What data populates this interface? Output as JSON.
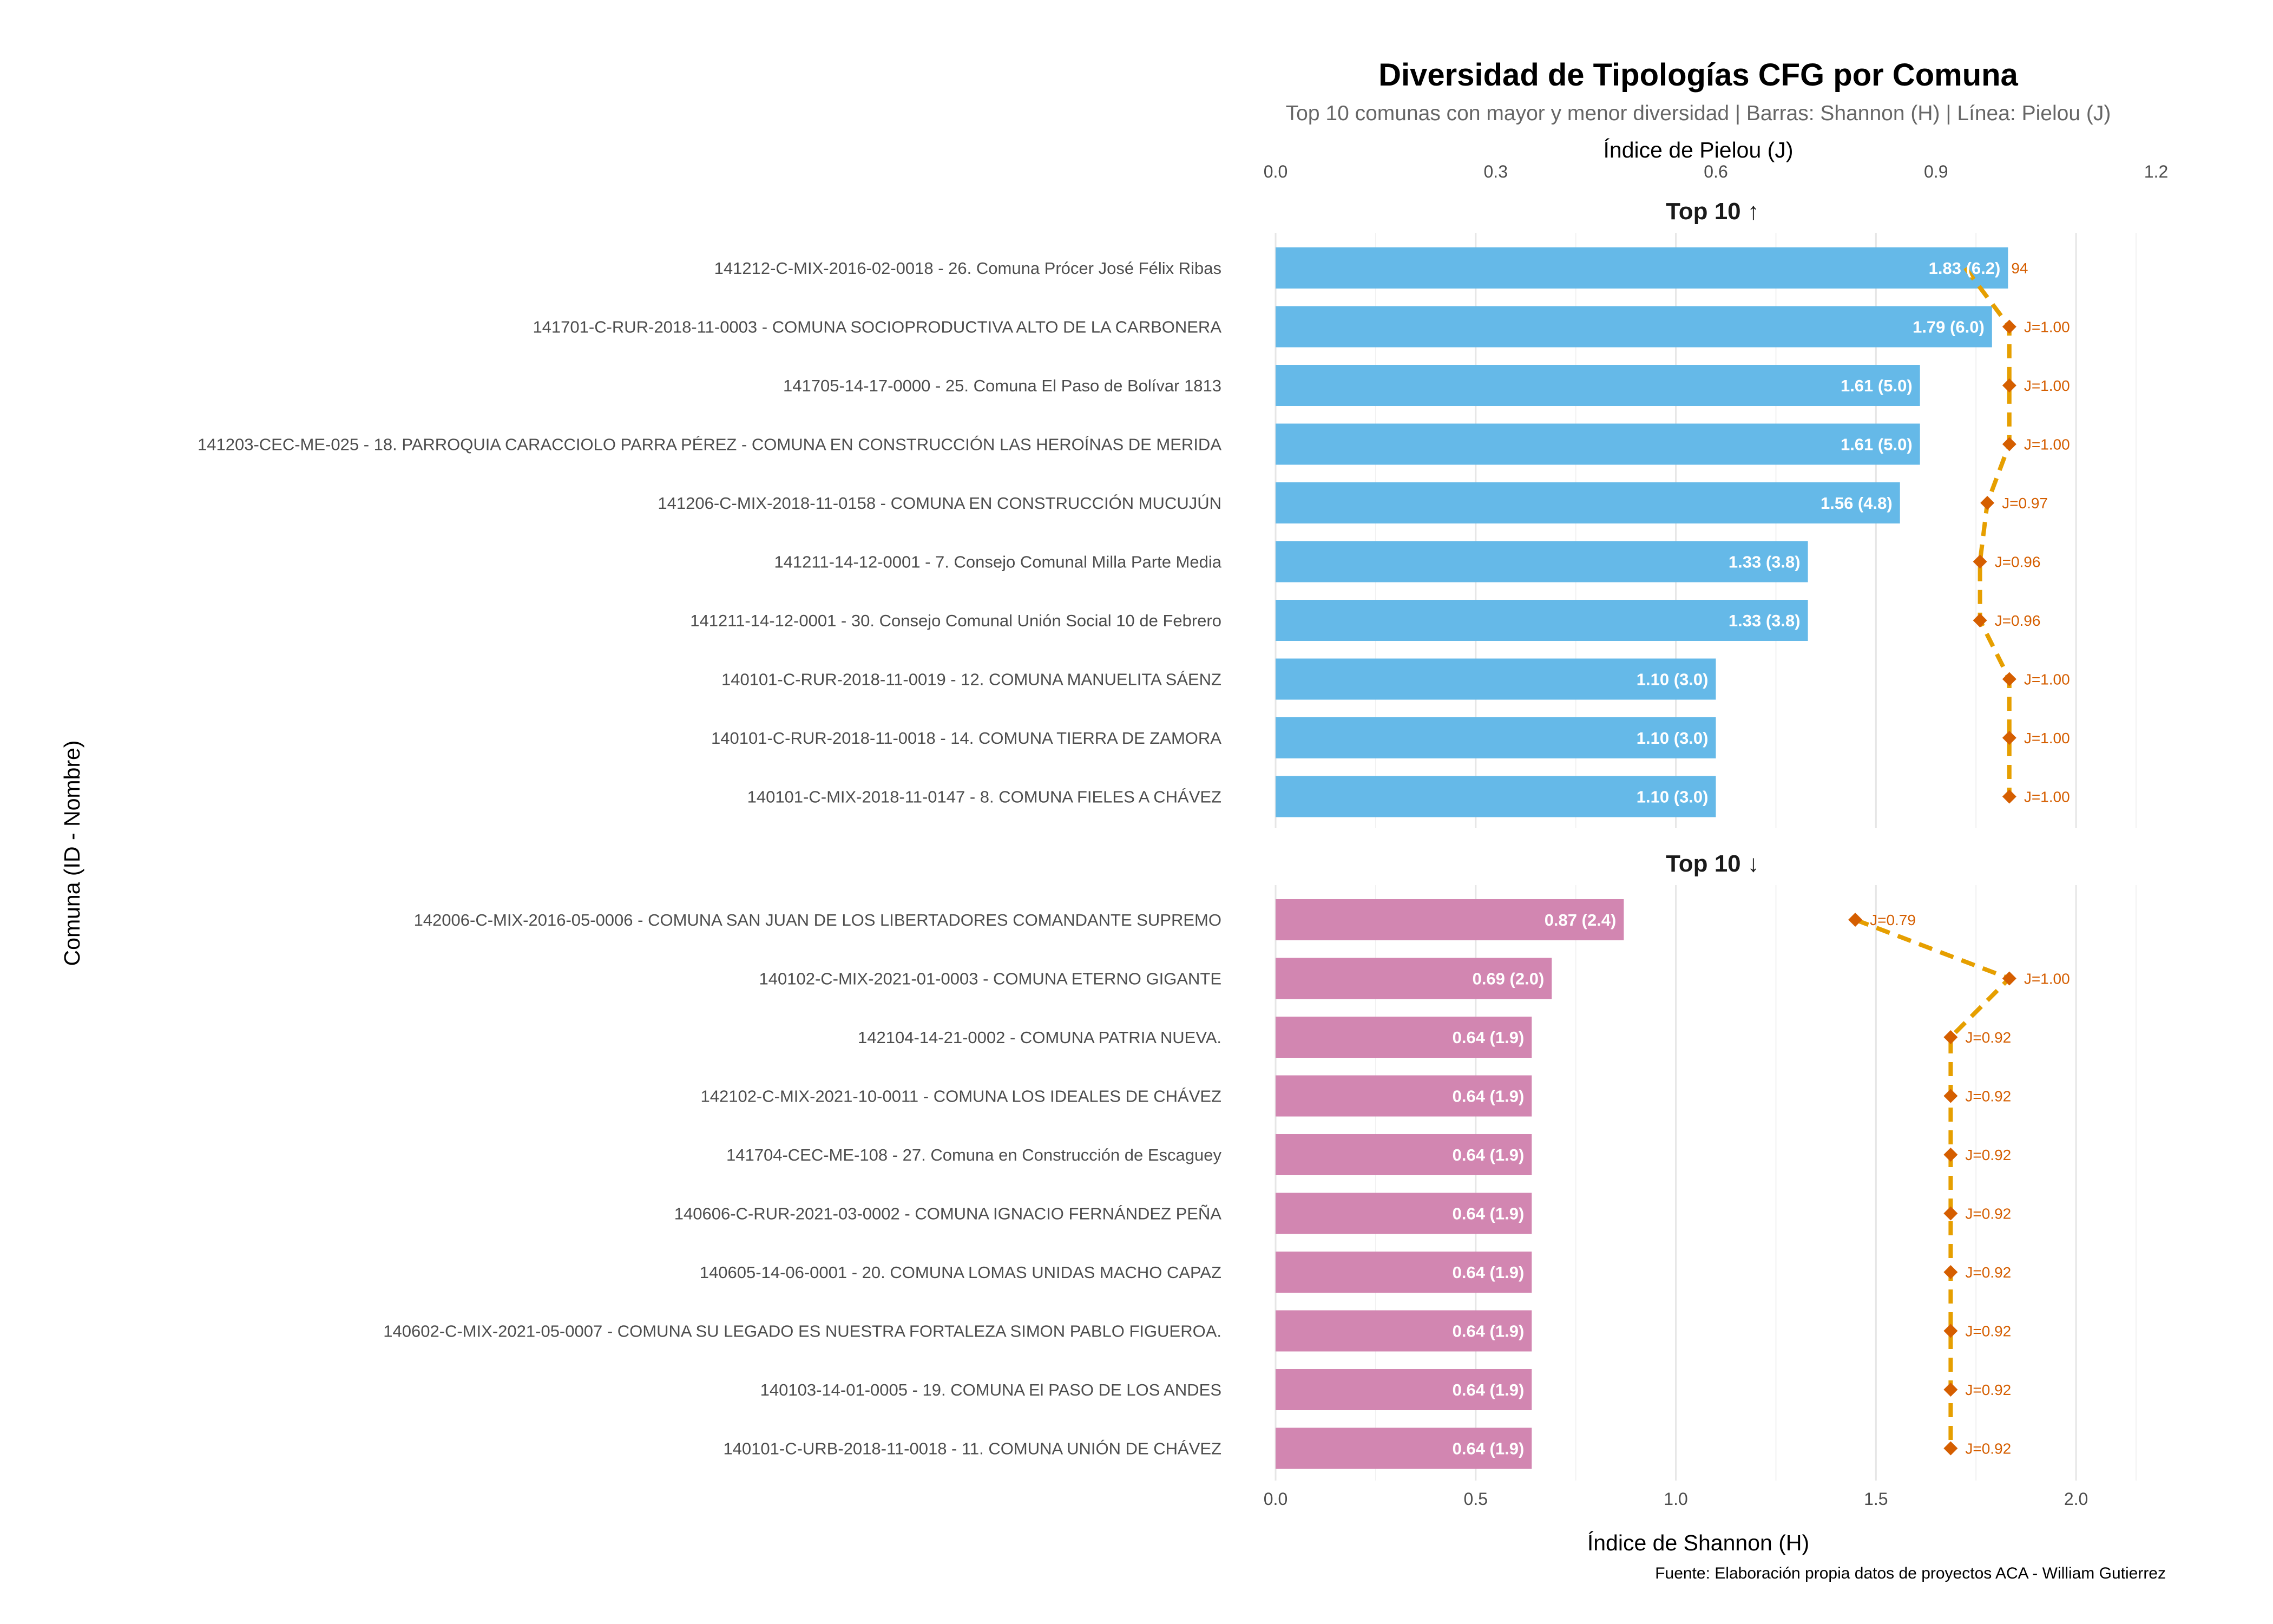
{
  "chart_data": {
    "type": "bar",
    "title": "Diversidad de Tipologías CFG por Comuna",
    "subtitle": "Top 10 comunas con mayor y menor diversidad | Barras: Shannon (H) | Línea: Pielou (J)",
    "xlabel": "Índice de Shannon (H)",
    "x2label": "Índice de Pielou (J)",
    "ylabel": "Comuna (ID - Nombre)",
    "caption": "Fuente: Elaboración propia datos de proyectos ACA - William Gutierrez",
    "xlim": [
      0,
      2.2
    ],
    "x2lim": [
      0,
      1.2
    ],
    "x_ticks": [
      "0.0",
      "0.5",
      "1.0",
      "1.5",
      "2.0"
    ],
    "x2_ticks": [
      "0.0",
      "0.3",
      "0.6",
      "0.9",
      "1.2"
    ],
    "grid": true,
    "colors": {
      "top": "#65B9E8",
      "bottom": "#D286B1",
      "line": "#E69F00",
      "point": "#D55E00",
      "label": "#ffffff"
    },
    "panels": [
      {
        "title": "Top 10 ↑",
        "categories": [
          "141212-C-MIX-2016-02-0018 - 26. Comuna Prócer José Félix Ribas",
          "141701-C-RUR-2018-11-0003 - COMUNA SOCIOPRODUCTIVA ALTO DE LA CARBONERA",
          "141705-14-17-0000 - 25. Comuna El Paso de Bolívar 1813",
          "141203-CEC-ME-025 - 18. PARROQUIA CARACCIOLO PARRA PÉREZ - COMUNA EN CONSTRUCCIÓN LAS HEROÍNAS DE MERIDA",
          "141206-C-MIX-2018-11-0158 - COMUNA EN CONSTRUCCIÓN MUCUJÚN",
          "141211-14-12-0001 - 7. Consejo Comunal Milla Parte Media",
          "141211-14-12-0001 - 30. Consejo Comunal  Unión Social 10 de Febrero",
          "140101-C-RUR-2018-11-0019 - 12. COMUNA MANUELITA SÁENZ",
          "140101-C-RUR-2018-11-0018 - 14. COMUNA TIERRA DE ZAMORA",
          "140101-C-MIX-2018-11-0147 - 8. COMUNA FIELES A CHÁVEZ"
        ],
        "shannon": [
          1.83,
          1.79,
          1.61,
          1.61,
          1.56,
          1.33,
          1.33,
          1.1,
          1.1,
          1.1
        ],
        "bar_labels": [
          "1.83 (6.2)",
          "1.79 (6.0)",
          "1.61 (5.0)",
          "1.61 (5.0)",
          "1.56 (4.8)",
          "1.33 (3.8)",
          "1.33 (3.8)",
          "1.10 (3.0)",
          "1.10 (3.0)",
          "1.10 (3.0)"
        ],
        "pielou": [
          0.94,
          1.0,
          1.0,
          1.0,
          0.97,
          0.96,
          0.96,
          1.0,
          1.0,
          1.0
        ],
        "pielou_labels": [
          "94",
          "J=1.00",
          "J=1.00",
          "J=1.00",
          "J=0.97",
          "J=0.96",
          "J=0.96",
          "J=1.00",
          "J=1.00",
          "J=1.00"
        ],
        "pielou_marker_visible": [
          false,
          true,
          true,
          true,
          true,
          true,
          true,
          true,
          true,
          true
        ]
      },
      {
        "title": "Top 10 ↓",
        "categories": [
          "142006-C-MIX-2016-05-0006 - COMUNA SAN JUAN DE LOS LIBERTADORES COMANDANTE SUPREMO",
          "140102-C-MIX-2021-01-0003 - COMUNA ETERNO GIGANTE",
          "142104-14-21-0002 - COMUNA PATRIA NUEVA.",
          "142102-C-MIX-2021-10-0011 - COMUNA LOS IDEALES DE CHÁVEZ",
          "141704-CEC-ME-108 - 27. Comuna en Construcción de Escaguey",
          "140606-C-RUR-2021-03-0002 - COMUNA IGNACIO FERNÁNDEZ PEÑA",
          "140605-14-06-0001 - 20. COMUNA LOMAS UNIDAS MACHO CAPAZ",
          "140602-C-MIX-2021-05-0007 - COMUNA SU LEGADO ES NUESTRA FORTALEZA SIMON PABLO FIGUEROA.",
          "140103-14-01-0005 - 19. COMUNA El PASO DE LOS ANDES",
          "140101-C-URB-2018-11-0018 - 11. COMUNA UNIÓN DE CHÁVEZ"
        ],
        "shannon": [
          0.87,
          0.69,
          0.64,
          0.64,
          0.64,
          0.64,
          0.64,
          0.64,
          0.64,
          0.64
        ],
        "bar_labels": [
          "0.87 (2.4)",
          "0.69 (2.0)",
          "0.64 (1.9)",
          "0.64 (1.9)",
          "0.64 (1.9)",
          "0.64 (1.9)",
          "0.64 (1.9)",
          "0.64 (1.9)",
          "0.64 (1.9)",
          "0.64 (1.9)"
        ],
        "pielou": [
          0.79,
          1.0,
          0.92,
          0.92,
          0.92,
          0.92,
          0.92,
          0.92,
          0.92,
          0.92
        ],
        "pielou_labels": [
          "J=0.79",
          "J=1.00",
          "J=0.92",
          "J=0.92",
          "J=0.92",
          "J=0.92",
          "J=0.92",
          "J=0.92",
          "J=0.92",
          "J=0.92"
        ],
        "pielou_marker_visible": [
          true,
          true,
          true,
          true,
          true,
          true,
          true,
          true,
          true,
          true
        ]
      }
    ]
  }
}
